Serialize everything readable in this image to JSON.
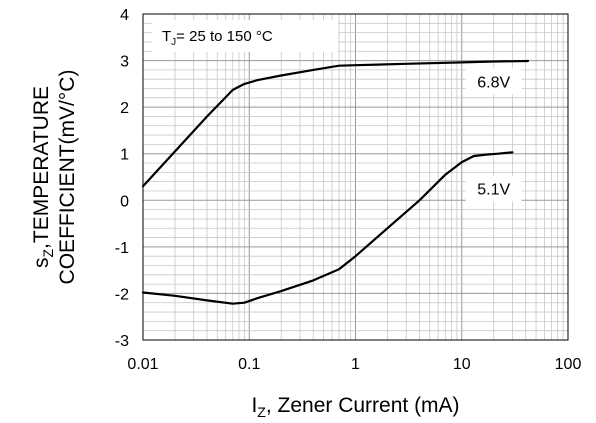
{
  "chart_data": {
    "type": "line",
    "xscale": "log",
    "xlim": [
      0.01,
      100
    ],
    "ylim": [
      -3,
      4
    ],
    "grid": true,
    "x_ticks": [
      "0.01",
      "0.1",
      "1",
      "10",
      "100"
    ],
    "y_ticks": [
      "-3",
      "-2",
      "-1",
      "0",
      "1",
      "2",
      "3",
      "4"
    ],
    "xlabel": {
      "main": "I",
      "sub": "Z",
      "rest": ", Zener Current (mA)"
    },
    "ylabel": {
      "line1": {
        "main": "s",
        "sub": "Z",
        "rest": ",TEMPERATURE"
      },
      "line2": "COEFFICIENT(mV/°C)"
    },
    "annotation": {
      "main": "T",
      "sub": "J",
      "rest": "= 25 to 150 °C"
    },
    "series": [
      {
        "name": "6.8V",
        "x": [
          0.01,
          0.02,
          0.04,
          0.07,
          0.09,
          0.12,
          0.2,
          0.4,
          0.7,
          1,
          3,
          10,
          20,
          42
        ],
        "y": [
          0.3,
          1.05,
          1.8,
          2.37,
          2.5,
          2.58,
          2.68,
          2.8,
          2.89,
          2.9,
          2.93,
          2.96,
          2.98,
          2.99
        ]
      },
      {
        "name": "5.1V",
        "x": [
          0.01,
          0.02,
          0.04,
          0.07,
          0.09,
          0.12,
          0.2,
          0.4,
          0.7,
          1,
          2,
          4,
          7,
          10,
          13,
          17,
          22,
          30
        ],
        "y": [
          -1.98,
          -2.05,
          -2.15,
          -2.22,
          -2.2,
          -2.1,
          -1.95,
          -1.72,
          -1.48,
          -1.2,
          -0.6,
          0.0,
          0.55,
          0.82,
          0.95,
          0.98,
          1.0,
          1.03
        ]
      }
    ]
  }
}
